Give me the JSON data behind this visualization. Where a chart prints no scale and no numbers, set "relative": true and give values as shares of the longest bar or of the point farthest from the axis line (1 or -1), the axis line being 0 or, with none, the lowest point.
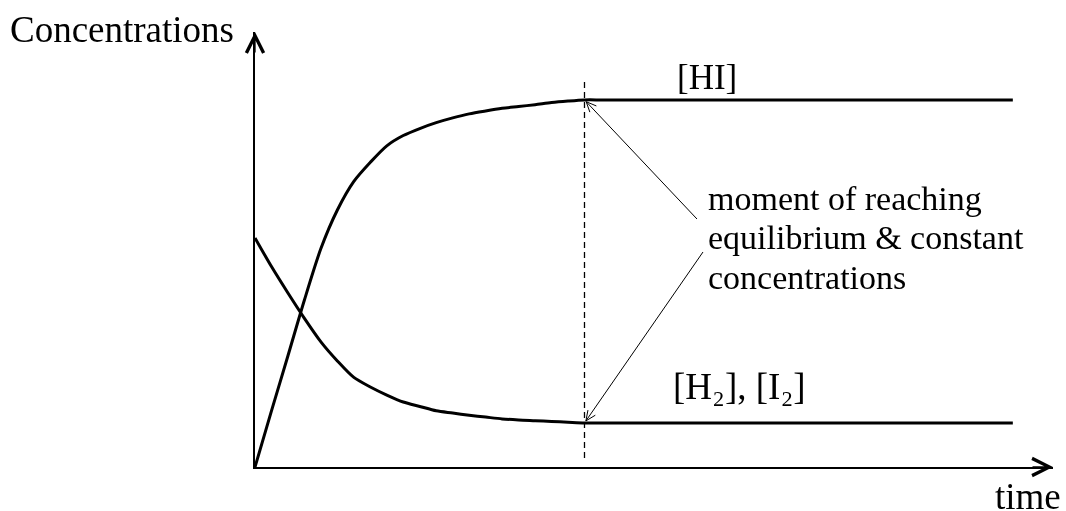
{
  "chart_data": {
    "type": "line",
    "relative": true,
    "xlabel": "time",
    "ylabel": "Concentrations",
    "categories": [
      null,
      null,
      null,
      null,
      null,
      null,
      null,
      null,
      null,
      null,
      null,
      null,
      null,
      null,
      null,
      null,
      null,
      null,
      null,
      null,
      null,
      null,
      null,
      null,
      null,
      null,
      null,
      null,
      null,
      null,
      null,
      null,
      null,
      null,
      null,
      null,
      null,
      null,
      null,
      null,
      null,
      null,
      null,
      null,
      null,
      null,
      null
    ],
    "series": [
      {
        "name": "[HI]",
        "color": "#000000",
        "values": [
          0,
          0.153,
          0.303,
          0.455,
          0.595,
          0.7,
          0.778,
          0.83,
          0.875,
          0.903,
          0.922,
          0.938,
          0.951,
          0.962,
          0.97,
          0.977,
          0.982,
          0.987,
          0.993,
          0.997,
          1,
          1,
          1,
          1,
          1,
          1,
          1,
          1,
          1,
          1,
          1,
          1,
          1,
          1,
          1,
          1,
          1,
          1,
          1,
          1,
          1,
          1,
          1,
          1,
          1,
          1,
          1
        ]
      },
      {
        "name": "[H₂], [I₂]",
        "color": "#000000",
        "values": [
          0.624,
          0.546,
          0.474,
          0.405,
          0.341,
          0.289,
          0.244,
          0.218,
          0.196,
          0.177,
          0.165,
          0.153,
          0.147,
          0.141,
          0.136,
          0.131,
          0.128,
          0.126,
          0.124,
          0.122,
          0.12,
          0.12,
          0.12,
          0.12,
          0.12,
          0.12,
          0.12,
          0.12,
          0.12,
          0.12,
          0.12,
          0.12,
          0.12,
          0.12,
          0.12,
          0.12,
          0.12,
          0.12,
          0.12,
          0.12,
          0.12,
          0.12,
          0.12,
          0.12,
          0.12,
          0.12,
          0.12
        ]
      }
    ],
    "annotations": [
      "moment of reaching equilibrium & constant concentrations"
    ],
    "line_style": "solid",
    "legend": false
  }
}
